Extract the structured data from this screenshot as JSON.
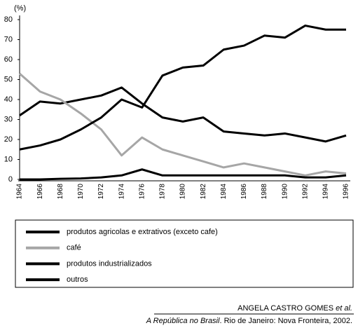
{
  "chart_data": {
    "type": "line",
    "y_label": "(%)",
    "categories": [
      "1964",
      "1966",
      "1968",
      "1970",
      "1972",
      "1974",
      "1976",
      "1978",
      "1980",
      "1982",
      "1984",
      "1986",
      "1988",
      "1990",
      "1992",
      "1994",
      "1996"
    ],
    "series": [
      {
        "name": "produtos agricolas e extrativos (exceto cafe)",
        "color": "#000000",
        "values": [
          32,
          39,
          38,
          40,
          42,
          46,
          38,
          31,
          29,
          31,
          24,
          23,
          22,
          23,
          21,
          19,
          22
        ]
      },
      {
        "name": "café",
        "color": "#a6a6a6",
        "values": [
          53,
          44,
          40,
          33,
          25,
          12,
          21,
          15,
          12,
          9,
          6,
          8,
          6,
          4,
          2,
          4,
          3
        ]
      },
      {
        "name": "produtos industrializados",
        "color": "#000000",
        "values": [
          15,
          17,
          20,
          25,
          31,
          40,
          36,
          52,
          56,
          57,
          65,
          67,
          72,
          71,
          77,
          75,
          75
        ]
      },
      {
        "name": "outros",
        "color": "#000000",
        "values": [
          0,
          0,
          0.3,
          0.5,
          1,
          2,
          5,
          2,
          2,
          2,
          2,
          2,
          2,
          2,
          1,
          1,
          2
        ]
      }
    ],
    "ylim": [
      0,
      80
    ],
    "yticks": [
      0,
      10,
      20,
      30,
      40,
      50,
      60,
      70,
      80
    ],
    "grid": false
  },
  "source": {
    "author": "ANGELA CASTRO GOMES",
    "etal": "et al.",
    "title": "A República no Brasil",
    "rest": ". Rio de Janeiro: Nova Fronteira, 2002."
  }
}
